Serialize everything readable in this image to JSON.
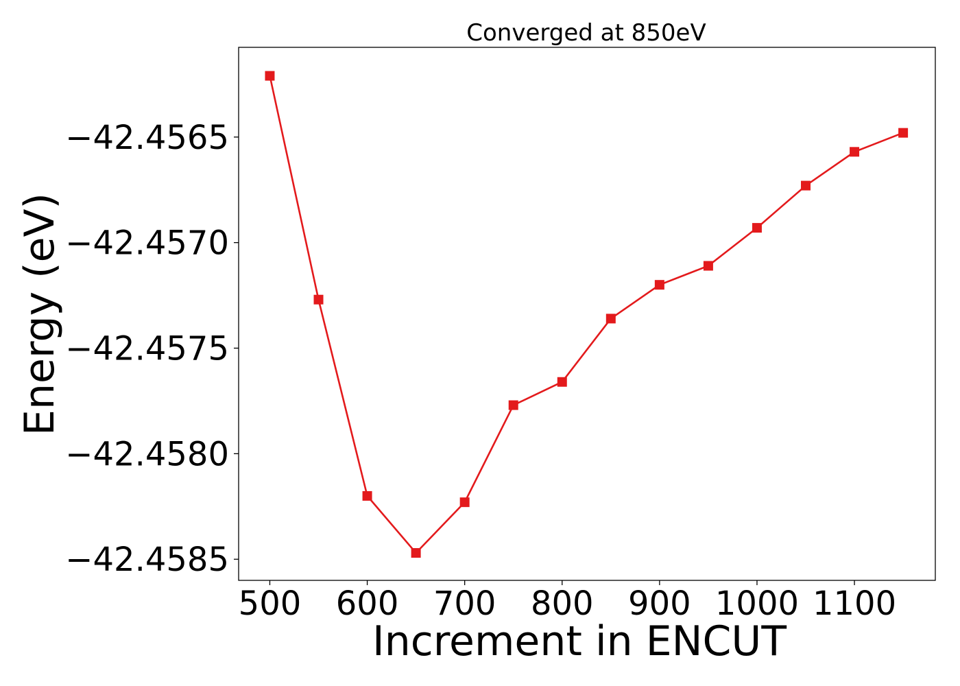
{
  "chart_data": {
    "type": "line",
    "title": "Converged at 850eV",
    "xlabel": "Increment in ENCUT",
    "ylabel": "Energy (eV)",
    "x": [
      500,
      550,
      600,
      650,
      700,
      750,
      800,
      850,
      900,
      950,
      1000,
      1050,
      1100,
      1150
    ],
    "series": [
      {
        "values": [
          -42.45621,
          -42.45727,
          -42.4582,
          -42.45847,
          -42.45823,
          -42.45777,
          -42.45766,
          -42.45736,
          -42.4572,
          -42.45711,
          -42.45693,
          -42.45673,
          -42.45657,
          -42.45648
        ],
        "color": "#e31a1c",
        "marker": "square"
      }
    ],
    "xlim": [
      468,
      1183
    ],
    "ylim": [
      -42.4586,
      -42.456075
    ],
    "xticks": [
      500,
      600,
      700,
      800,
      900,
      1000,
      1100
    ],
    "xtick_labels": [
      "500",
      "600",
      "700",
      "800",
      "900",
      "1000",
      "1100"
    ],
    "yticks": [
      -42.4565,
      -42.457,
      -42.4575,
      -42.458,
      -42.4585
    ],
    "ytick_labels": [
      "−42.4565",
      "−42.4570",
      "−42.4575",
      "−42.4580",
      "−42.4585"
    ],
    "grid": false,
    "legend": "none"
  }
}
